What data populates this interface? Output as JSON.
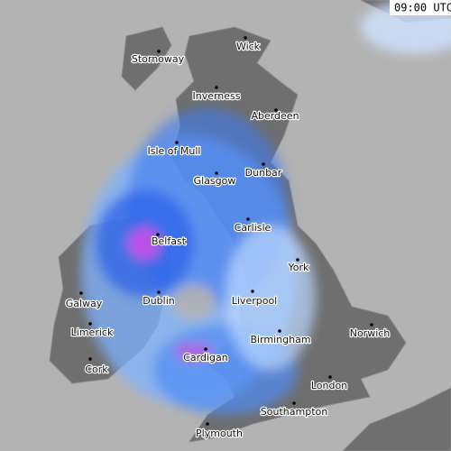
{
  "time": "09:00 UTC",
  "places": [
    {
      "label": "Wick"
    },
    {
      "label": "Stornoway"
    },
    {
      "label": "Inverness"
    },
    {
      "label": "Aberdeen"
    },
    {
      "label": "Isle of Mull"
    },
    {
      "label": "Dunbar"
    },
    {
      "label": "Glasgow"
    },
    {
      "label": "Carlisle"
    },
    {
      "label": "Belfast"
    },
    {
      "label": "York"
    },
    {
      "label": "Galway"
    },
    {
      "label": "Dublin"
    },
    {
      "label": "Liverpool"
    },
    {
      "label": "Limerick"
    },
    {
      "label": "Birmingham"
    },
    {
      "label": "Norwich"
    },
    {
      "label": "Cork"
    },
    {
      "label": "Cardigan"
    },
    {
      "label": "London"
    },
    {
      "label": "Southampton"
    },
    {
      "label": "Plymouth"
    }
  ]
}
